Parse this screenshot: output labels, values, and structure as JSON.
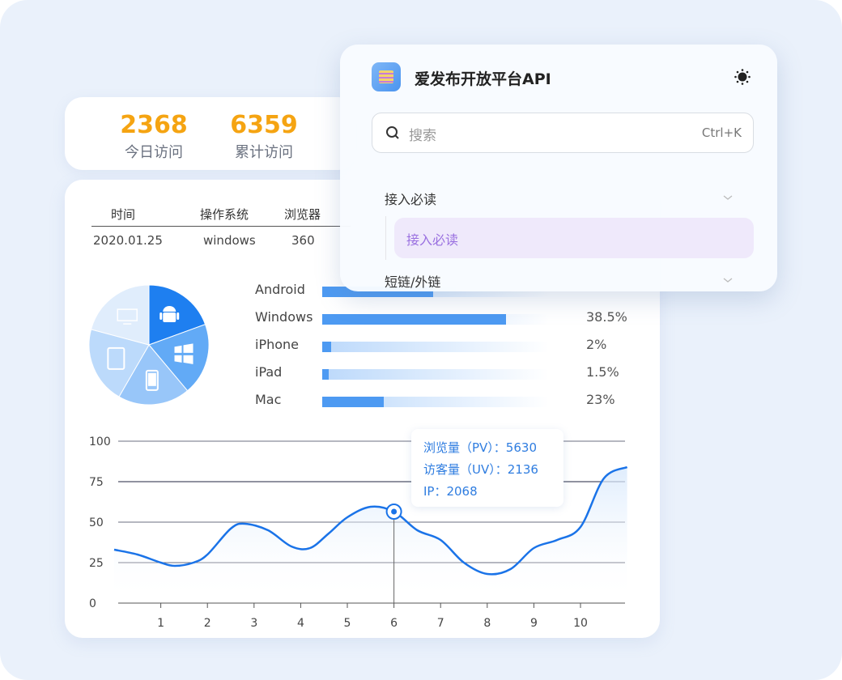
{
  "stats": [
    {
      "value": "2368",
      "label": "今日访问"
    },
    {
      "value": "6359",
      "label": "累计访问"
    }
  ],
  "table": {
    "headers": [
      "时间",
      "操作系统",
      "浏览器"
    ],
    "rows": [
      [
        "2020.01.25",
        "windows",
        "360"
      ]
    ]
  },
  "os_share": [
    {
      "name": "Android",
      "percent": null,
      "icon": "android-icon",
      "color": "#1e7ff0"
    },
    {
      "name": "Windows",
      "percent": "38.5%",
      "icon": "windows-icon",
      "color": "#62aaf6"
    },
    {
      "name": "iPhone",
      "percent": "2%",
      "icon": "phone-icon",
      "color": "#98c6f9"
    },
    {
      "name": "iPad",
      "percent": "1.5%",
      "icon": "tablet-icon",
      "color": "#bcdafb"
    },
    {
      "name": "Mac",
      "percent": "23%",
      "icon": "monitor-icon",
      "color": "#e0edfc"
    }
  ],
  "popup": {
    "title": "爱发布开放平台API",
    "theme_icon": "sun-icon",
    "search_placeholder": "搜索",
    "search_shortcut": "Ctrl+K",
    "nav": [
      {
        "label": "接入必读",
        "expanded": true,
        "children": [
          {
            "label": "接入必读",
            "selected": true
          }
        ]
      },
      {
        "label": "短链/外链",
        "expanded": false
      }
    ]
  },
  "tooltip": {
    "pv": "浏览量（PV）：5630",
    "uv": "访客量（UV）：2136",
    "ip": "IP：2068"
  },
  "chart_data": {
    "type": "line",
    "x_ticks": [
      1,
      2,
      3,
      4,
      5,
      6,
      7,
      8,
      9,
      10
    ],
    "y_ticks": [
      0,
      25,
      50,
      75,
      100
    ],
    "ylim": [
      0,
      100
    ],
    "xlim": [
      0,
      11
    ],
    "grid": true,
    "highlight_x": 6,
    "line_color": "#1a73e8",
    "points": [
      [
        0,
        33
      ],
      [
        0.5,
        30
      ],
      [
        1,
        25
      ],
      [
        1.3,
        23
      ],
      [
        1.7,
        25
      ],
      [
        2,
        30
      ],
      [
        2.5,
        46
      ],
      [
        2.8,
        49
      ],
      [
        3.3,
        45
      ],
      [
        3.8,
        35
      ],
      [
        4.2,
        34
      ],
      [
        4.6,
        43
      ],
      [
        5,
        53
      ],
      [
        5.5,
        59.5
      ],
      [
        6,
        56.5
      ],
      [
        6.5,
        45
      ],
      [
        7,
        39
      ],
      [
        7.5,
        25
      ],
      [
        8,
        18
      ],
      [
        8.5,
        21
      ],
      [
        9,
        34
      ],
      [
        9.5,
        39
      ],
      [
        10,
        47
      ],
      [
        10.5,
        77
      ],
      [
        11,
        84
      ]
    ]
  }
}
